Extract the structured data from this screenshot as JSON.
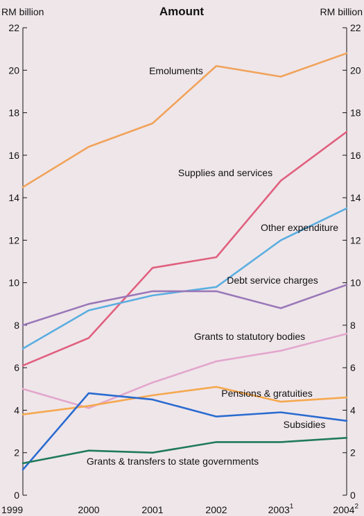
{
  "chart_data": {
    "type": "line",
    "title": "Amount",
    "ylabel_left": "RM billion",
    "ylabel_right": "RM billion",
    "x": [
      "1999",
      "2000",
      "2001",
      "2002",
      "2003",
      "2004"
    ],
    "x_superscripts": [
      "",
      "",
      "",
      "",
      "1",
      "2"
    ],
    "ylim": [
      0,
      22
    ],
    "yticks": [
      0,
      2,
      4,
      6,
      8,
      10,
      12,
      14,
      16,
      18,
      20,
      22
    ],
    "grid": false,
    "legend": "inline labels",
    "series": [
      {
        "name": "Emoluments",
        "color": "#f0a35a",
        "values": [
          14.5,
          16.4,
          17.5,
          20.2,
          19.7,
          20.8
        ]
      },
      {
        "name": "Supplies and services",
        "color": "#e0607e",
        "values": [
          6.1,
          7.4,
          10.7,
          11.2,
          14.8,
          17.1
        ]
      },
      {
        "name": "Other expenditure",
        "color": "#5aaee0",
        "values": [
          6.9,
          8.7,
          9.4,
          9.8,
          12.0,
          13.5
        ]
      },
      {
        "name": "Debt service charges",
        "color": "#9a78b8",
        "values": [
          8.0,
          9.0,
          9.6,
          9.6,
          8.8,
          9.9
        ]
      },
      {
        "name": "Grants to statutory bodies",
        "color": "#e3a6cc",
        "values": [
          5.0,
          4.1,
          5.3,
          6.3,
          6.8,
          7.6
        ]
      },
      {
        "name": "Pensions & gratuities",
        "color": "#f5a84e",
        "values": [
          3.8,
          4.2,
          4.7,
          5.1,
          4.4,
          4.6
        ]
      },
      {
        "name": "Subsidies",
        "color": "#2a6bd0",
        "values": [
          1.2,
          4.8,
          4.5,
          3.7,
          3.9,
          3.5
        ]
      },
      {
        "name": "Grants & transfers to state governments",
        "color": "#1f7a5a",
        "values": [
          1.5,
          2.1,
          2.0,
          2.5,
          2.5,
          2.7
        ]
      }
    ]
  }
}
